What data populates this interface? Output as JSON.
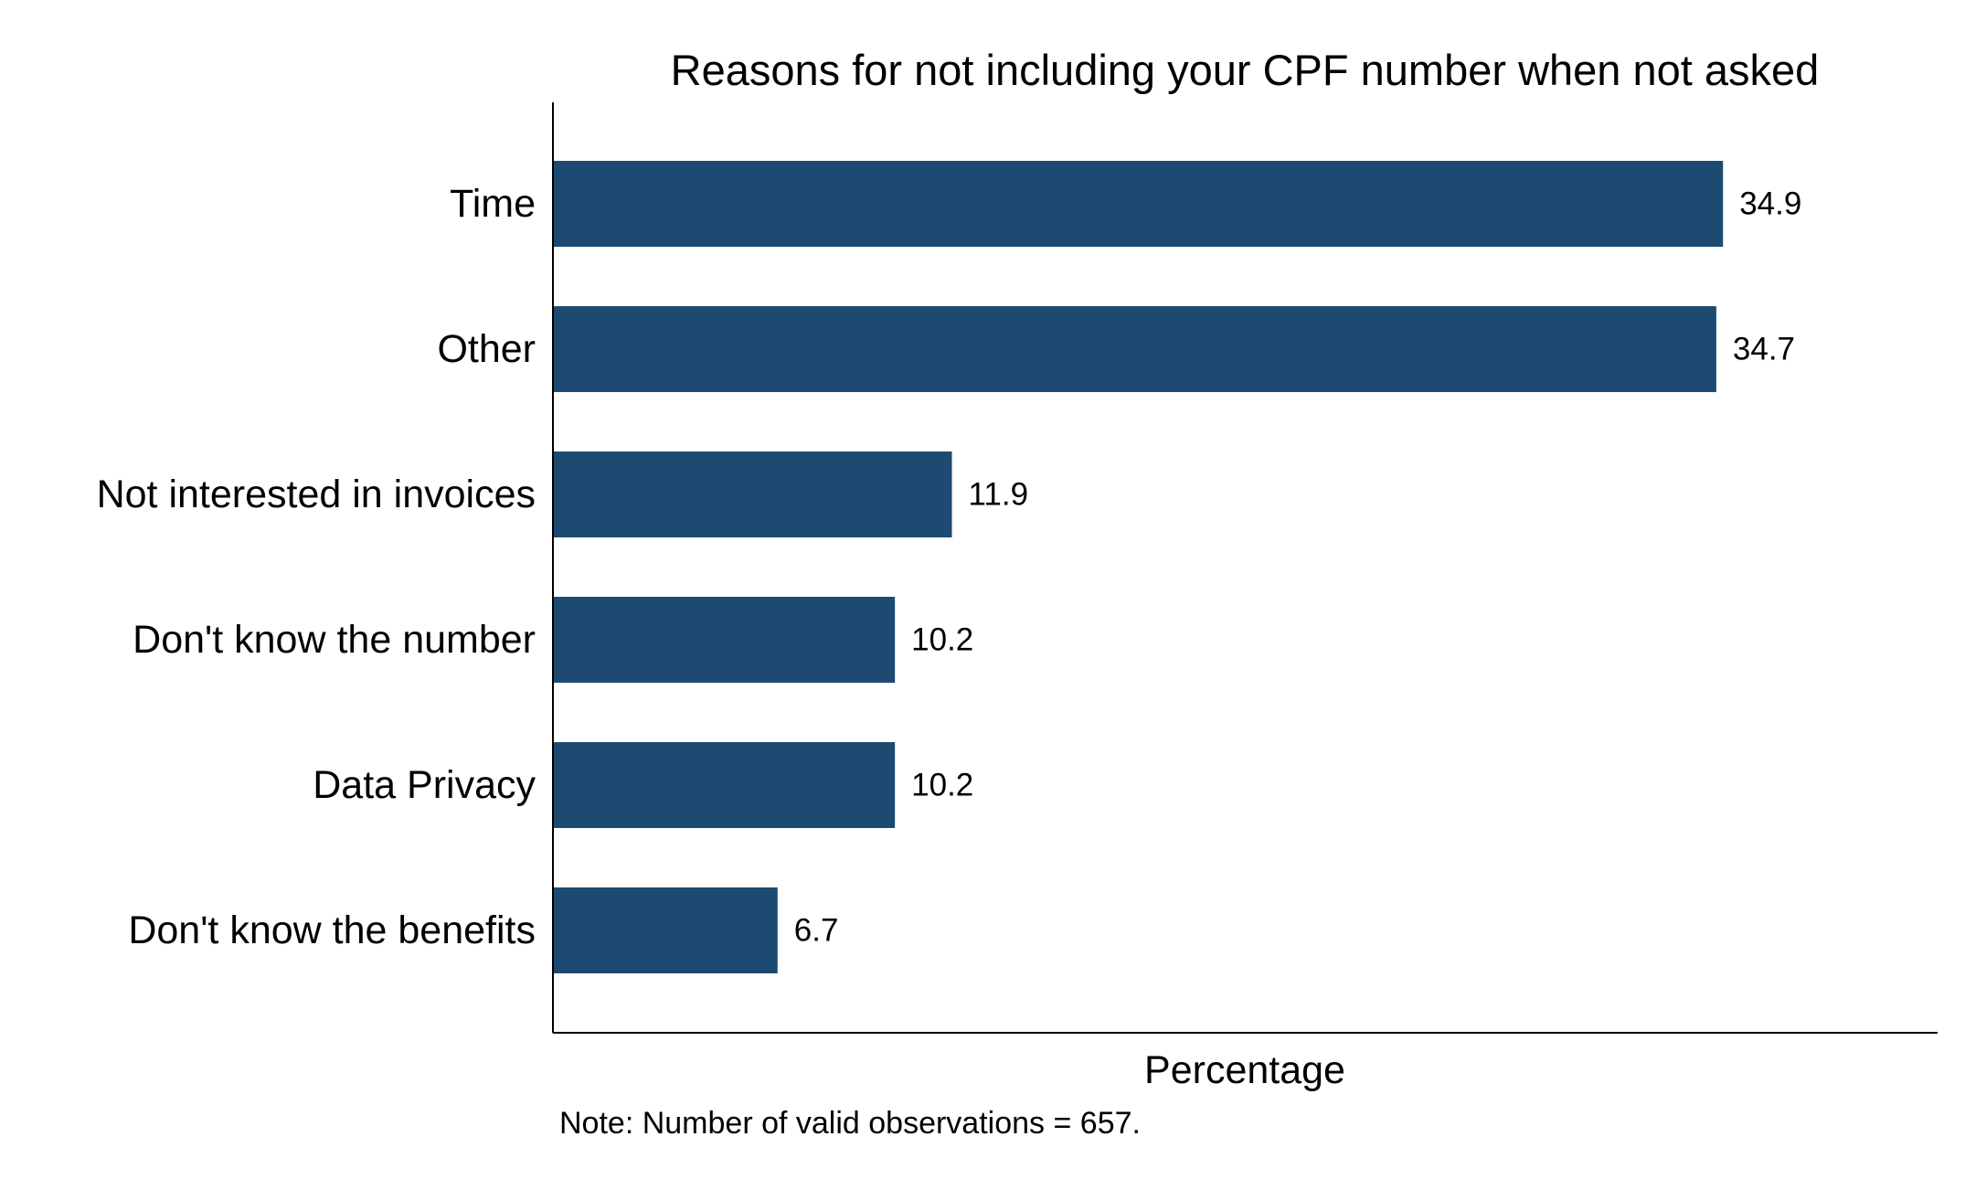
{
  "chart_data": {
    "type": "bar",
    "orientation": "horizontal",
    "title": "Reasons for not including your CPF number when not asked",
    "xlabel": "Percentage",
    "ylabel": "",
    "note": "Note: Number of valid observations = 657.",
    "categories": [
      "Time",
      "Other",
      "Not interested in invoices",
      "Don't know the number",
      "Data Privacy",
      "Don't know the benefits"
    ],
    "values": [
      34.9,
      34.7,
      11.9,
      10.2,
      10.2,
      6.7
    ],
    "value_labels": [
      "34.9",
      "34.7",
      "11.9",
      "10.2",
      "10.2",
      "6.7"
    ],
    "xlim": [
      0,
      41.3
    ],
    "grid": false,
    "legend": "none",
    "bar_color": "#1d4a70"
  }
}
